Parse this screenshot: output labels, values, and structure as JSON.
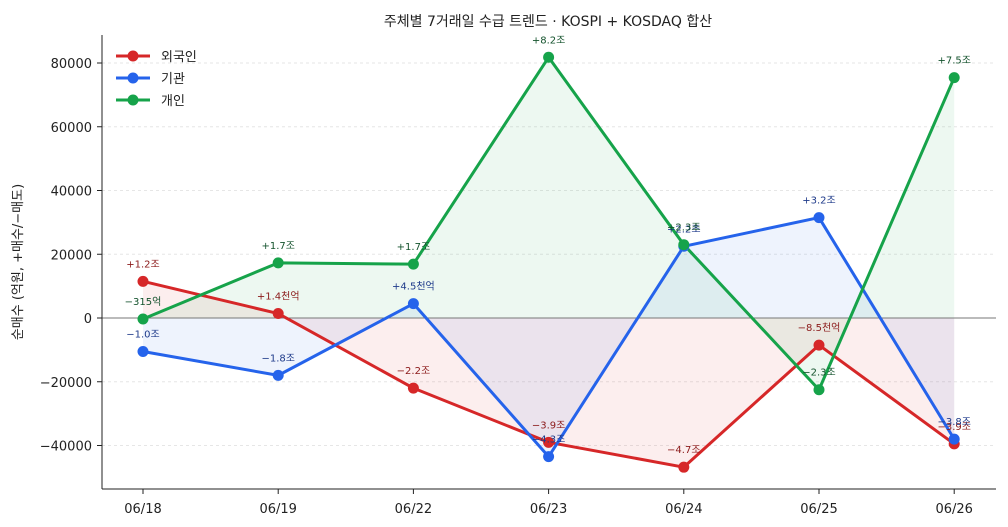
{
  "chart_data": {
    "type": "line",
    "title": "주체별 7거래일 수급 트렌드 · KOSPI + KOSDAQ 합산",
    "xlabel": "",
    "ylabel": "순매수 (억원, +매수/−매도)",
    "categories": [
      "06/18",
      "06/19",
      "06/22",
      "06/23",
      "06/24",
      "06/25",
      "06/26"
    ],
    "ylim": [
      -53000,
      88000
    ],
    "yticks": [
      -40000,
      -20000,
      0,
      20000,
      40000,
      60000,
      80000
    ],
    "ytick_labels": [
      "−40000",
      "−20000",
      "0",
      "20000",
      "40000",
      "60000",
      "80000"
    ],
    "grid": "horizontal dashed",
    "legend_position": "top-left",
    "series": [
      {
        "name": "외국인",
        "color": "#d62728",
        "label_color": "#8b1a1a",
        "values": [
          11500,
          1400,
          -22000,
          -39000,
          -46800,
          -8500,
          -39500
        ],
        "labels": [
          "+1.2조",
          "+1.4천억",
          "−2.2조",
          "−3.9조",
          "−4.7조",
          "−8.5천억",
          "−3.9조"
        ]
      },
      {
        "name": "기관",
        "color": "#2563eb",
        "label_color": "#1e3a8a",
        "values": [
          -10500,
          -18000,
          4500,
          -43500,
          22500,
          31500,
          -38000
        ],
        "labels": [
          "−1.0조",
          "−1.8조",
          "+4.5천억",
          "−4.3조",
          "+2.2조",
          "+3.2조",
          "−3.8조"
        ]
      },
      {
        "name": "개인",
        "color": "#16a34a",
        "label_color": "#14532d",
        "values": [
          -315,
          17300,
          16900,
          81800,
          23000,
          -22500,
          75400
        ],
        "labels": [
          "−315억",
          "+1.7조",
          "+1.7조",
          "+8.2조",
          "+2.3조",
          "−2.3조",
          "+7.5조"
        ]
      }
    ]
  }
}
